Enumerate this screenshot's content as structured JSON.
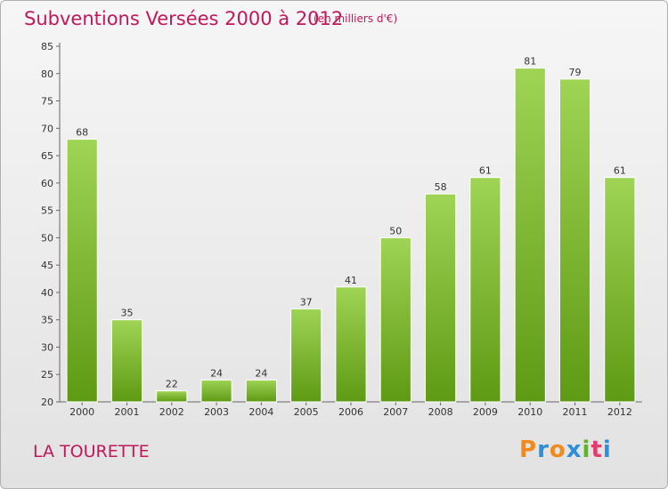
{
  "header": {
    "title": "Subventions Versées 2000 à 2012",
    "subtitle": "(en milliers d'€)"
  },
  "footer": {
    "place": "LA TOURETTE",
    "logo": [
      "P",
      "r",
      "o",
      "x",
      "i",
      "t",
      "i"
    ]
  },
  "colors": {
    "title": "#c0185a",
    "bar_top": "#9fd455",
    "bar_bottom": "#5e9a14",
    "logo_letters": [
      "#f08a1c",
      "#2f8fd8",
      "#f08a1c",
      "#2f8fd8",
      "#5fb52a",
      "#e63b6a",
      "#2f8fd8"
    ]
  },
  "chart_data": {
    "type": "bar",
    "categories": [
      "2000",
      "2001",
      "2002",
      "2003",
      "2004",
      "2005",
      "2006",
      "2007",
      "2008",
      "2009",
      "2010",
      "2011",
      "2012"
    ],
    "values": [
      68,
      35,
      22,
      24,
      24,
      37,
      41,
      50,
      58,
      61,
      81,
      79,
      61
    ],
    "ylim": [
      20,
      85
    ],
    "yticks": [
      20,
      25,
      30,
      35,
      40,
      45,
      50,
      55,
      60,
      65,
      70,
      75,
      80,
      85
    ],
    "grid": false,
    "data_labels": true
  }
}
